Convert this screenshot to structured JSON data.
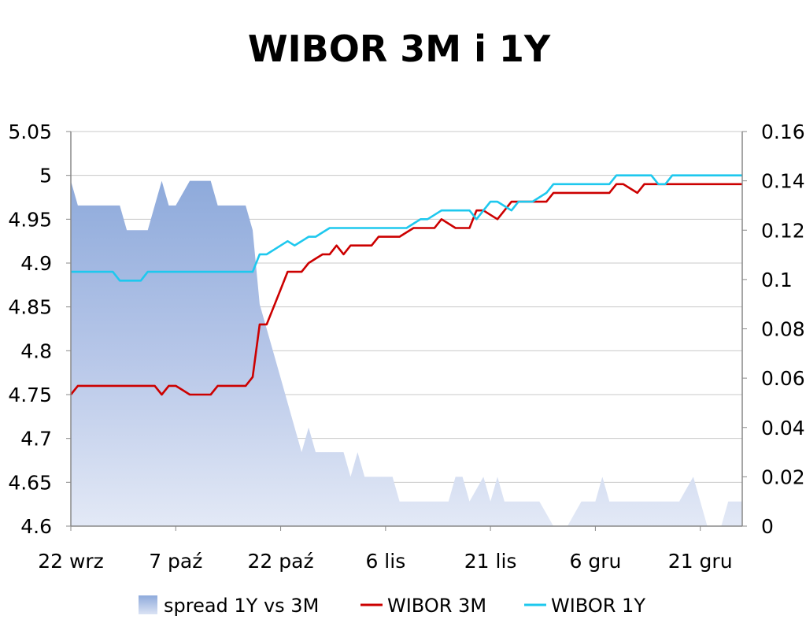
{
  "chart_data": {
    "type": "line",
    "title": "WIBOR 3M i 1Y",
    "x_tick_labels": [
      "22 wrz",
      "7 paź",
      "22 paź",
      "6 lis",
      "21 lis",
      "6 gru",
      "21 gru"
    ],
    "x_tick_days": [
      0,
      15,
      30,
      45,
      60,
      75,
      90
    ],
    "x_range_days": [
      0,
      96
    ],
    "y_left": {
      "ticks": [
        "5.05",
        "5",
        "4.95",
        "4.9",
        "4.85",
        "4.8",
        "4.75",
        "4.7",
        "4.65",
        "4.6"
      ],
      "range": [
        4.6,
        5.05
      ]
    },
    "y_right": {
      "ticks": [
        "0.16",
        "0.14",
        "0.12",
        "0.1",
        "0.08",
        "0.06",
        "0.04",
        "0.02",
        "0"
      ],
      "range": [
        0,
        0.16
      ]
    },
    "grid": true,
    "legend_position": "bottom",
    "legend": [
      "spread 1Y vs 3M",
      "WIBOR 3M",
      "WIBOR 1Y"
    ],
    "series": [
      {
        "name": "spread 1Y vs 3M",
        "kind": "area",
        "axis": "right",
        "color": "#8eaadb",
        "x": [
          0,
          1,
          2,
          3,
          4,
          5,
          6,
          7,
          8,
          9,
          10,
          11,
          12,
          13,
          14,
          15,
          16,
          17,
          18,
          19,
          20,
          21,
          22,
          23,
          24,
          25,
          26,
          27,
          28,
          29,
          30,
          31,
          32,
          33,
          34,
          35,
          36,
          37,
          38,
          39,
          40,
          41,
          42,
          43,
          44,
          45,
          46,
          47,
          48,
          49,
          50,
          51,
          52,
          53,
          54,
          55,
          56,
          57,
          58,
          59,
          60,
          61,
          62,
          63,
          64,
          65,
          66,
          67,
          68,
          69,
          70,
          71,
          72,
          73,
          74,
          75,
          76,
          77,
          78,
          79,
          80,
          81,
          82,
          83,
          84,
          85,
          86,
          87,
          88,
          89,
          90,
          91,
          92,
          93,
          94,
          95,
          96
        ],
        "values": [
          0.14,
          0.13,
          0.13,
          0.13,
          0.13,
          0.13,
          0.13,
          0.13,
          0.12,
          0.12,
          0.12,
          0.12,
          0.13,
          0.14,
          0.13,
          0.13,
          0.135,
          0.14,
          0.14,
          0.14,
          0.14,
          0.13,
          0.13,
          0.13,
          0.13,
          0.13,
          0.12,
          0.09,
          0.08,
          0.07,
          0.06,
          0.05,
          0.04,
          0.03,
          0.04,
          0.03,
          0.03,
          0.03,
          0.03,
          0.03,
          0.02,
          0.03,
          0.02,
          0.02,
          0.02,
          0.02,
          0.02,
          0.01,
          0.01,
          0.01,
          0.01,
          0.01,
          0.01,
          0.01,
          0.01,
          0.02,
          0.02,
          0.01,
          0.015,
          0.02,
          0.01,
          0.02,
          0.01,
          0.01,
          0.01,
          0.01,
          0.01,
          0.01,
          0.005,
          0.0,
          0.0,
          0.0,
          0.005,
          0.01,
          0.01,
          0.01,
          0.02,
          0.01,
          0.01,
          0.01,
          0.01,
          0.01,
          0.01,
          0.01,
          0.01,
          0.01,
          0.01,
          0.01,
          0.015,
          0.02,
          0.01,
          0.0,
          0.0,
          0.0,
          0.01,
          0.01,
          0.01
        ]
      },
      {
        "name": "WIBOR 3M",
        "kind": "line",
        "axis": "left",
        "color": "#cc0000",
        "x": [
          0,
          1,
          2,
          3,
          4,
          5,
          6,
          7,
          8,
          9,
          10,
          11,
          12,
          13,
          14,
          15,
          16,
          17,
          18,
          19,
          20,
          21,
          22,
          23,
          24,
          25,
          26,
          27,
          28,
          29,
          30,
          31,
          32,
          33,
          34,
          35,
          36,
          37,
          38,
          39,
          40,
          41,
          42,
          43,
          44,
          45,
          46,
          47,
          48,
          49,
          50,
          51,
          52,
          53,
          54,
          55,
          56,
          57,
          58,
          59,
          60,
          61,
          62,
          63,
          64,
          65,
          66,
          67,
          68,
          69,
          70,
          71,
          72,
          73,
          74,
          75,
          76,
          77,
          78,
          79,
          80,
          81,
          82,
          83,
          84,
          85,
          86,
          87,
          88,
          89,
          90,
          91,
          92,
          93,
          94,
          95,
          96
        ],
        "values": [
          4.75,
          4.76,
          4.76,
          4.76,
          4.76,
          4.76,
          4.76,
          4.76,
          4.76,
          4.76,
          4.76,
          4.76,
          4.76,
          4.75,
          4.76,
          4.76,
          4.755,
          4.75,
          4.75,
          4.75,
          4.75,
          4.76,
          4.76,
          4.76,
          4.76,
          4.76,
          4.77,
          4.83,
          4.83,
          4.85,
          4.87,
          4.89,
          4.89,
          4.89,
          4.9,
          4.905,
          4.91,
          4.91,
          4.92,
          4.91,
          4.92,
          4.92,
          4.92,
          4.92,
          4.93,
          4.93,
          4.93,
          4.93,
          4.935,
          4.94,
          4.94,
          4.94,
          4.94,
          4.95,
          4.945,
          4.94,
          4.94,
          4.94,
          4.96,
          4.96,
          4.955,
          4.95,
          4.96,
          4.97,
          4.97,
          4.97,
          4.97,
          4.97,
          4.97,
          4.98,
          4.98,
          4.98,
          4.98,
          4.98,
          4.98,
          4.98,
          4.98,
          4.98,
          4.99,
          4.99,
          4.985,
          4.98,
          4.99,
          4.99,
          4.99,
          4.99,
          4.99,
          4.99,
          4.99,
          4.99,
          4.99,
          4.99,
          4.99,
          4.99,
          4.99,
          4.99,
          4.99
        ]
      },
      {
        "name": "WIBOR 1Y",
        "kind": "line",
        "axis": "left",
        "color": "#1ec8ee",
        "x": [
          0,
          1,
          2,
          3,
          4,
          5,
          6,
          7,
          8,
          9,
          10,
          11,
          12,
          13,
          14,
          15,
          16,
          17,
          18,
          19,
          20,
          21,
          22,
          23,
          24,
          25,
          26,
          27,
          28,
          29,
          30,
          31,
          32,
          33,
          34,
          35,
          36,
          37,
          38,
          39,
          40,
          41,
          42,
          43,
          44,
          45,
          46,
          47,
          48,
          49,
          50,
          51,
          52,
          53,
          54,
          55,
          56,
          57,
          58,
          59,
          60,
          61,
          62,
          63,
          64,
          65,
          66,
          67,
          68,
          69,
          70,
          71,
          72,
          73,
          74,
          75,
          76,
          77,
          78,
          79,
          80,
          81,
          82,
          83,
          84,
          85,
          86,
          87,
          88,
          89,
          90,
          91,
          92,
          93,
          94,
          95,
          96
        ],
        "values": [
          4.89,
          4.89,
          4.89,
          4.89,
          4.89,
          4.89,
          4.89,
          4.88,
          4.88,
          4.88,
          4.88,
          4.89,
          4.89,
          4.89,
          4.89,
          4.89,
          4.89,
          4.89,
          4.89,
          4.89,
          4.89,
          4.89,
          4.89,
          4.89,
          4.89,
          4.89,
          4.89,
          4.91,
          4.91,
          4.915,
          4.92,
          4.925,
          4.92,
          4.925,
          4.93,
          4.93,
          4.935,
          4.94,
          4.94,
          4.94,
          4.94,
          4.94,
          4.94,
          4.94,
          4.94,
          4.94,
          4.94,
          4.94,
          4.94,
          4.945,
          4.95,
          4.95,
          4.955,
          4.96,
          4.96,
          4.96,
          4.96,
          4.96,
          4.95,
          4.96,
          4.97,
          4.97,
          4.965,
          4.96,
          4.97,
          4.97,
          4.97,
          4.975,
          4.98,
          4.99,
          4.99,
          4.99,
          4.99,
          4.99,
          4.99,
          4.99,
          4.99,
          4.99,
          5.0,
          5.0,
          5.0,
          5.0,
          5.0,
          5.0,
          4.99,
          4.99,
          5.0,
          5.0,
          5.0,
          5.0,
          5.0,
          5.0,
          5.0,
          5.0,
          5.0,
          5.0,
          5.0
        ]
      }
    ]
  }
}
